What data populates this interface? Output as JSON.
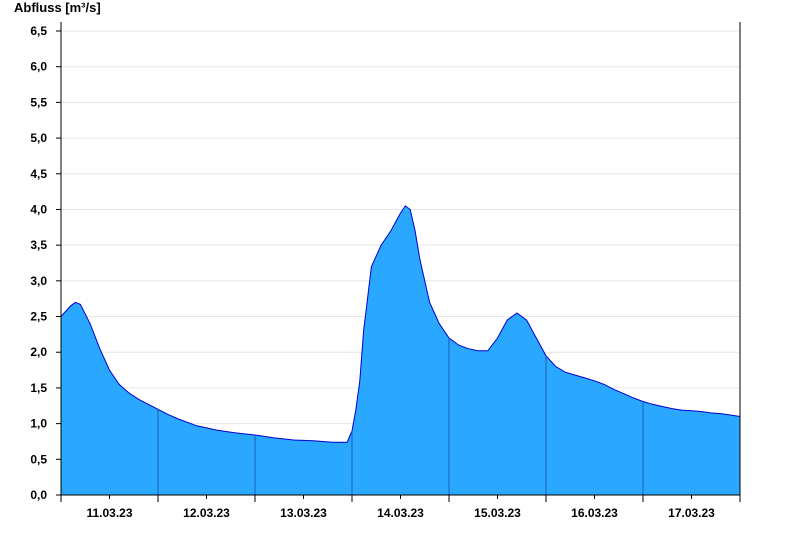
{
  "chart_data": {
    "type": "area",
    "title": "",
    "ylabel": "Abfluss [m³/s]",
    "xlabel": "",
    "ylim": [
      0,
      6.5
    ],
    "yticks": [
      0,
      0.5,
      1,
      1.5,
      2,
      2.5,
      3,
      3.5,
      4,
      4.5,
      5,
      5.5,
      6,
      6.5
    ],
    "ytick_labels": [
      "0,0",
      "0,5",
      "1,0",
      "1,5",
      "2,0",
      "2,5",
      "3,0",
      "3,5",
      "4,0",
      "4,5",
      "5,0",
      "5,5",
      "6,0",
      "6,5"
    ],
    "xlim_days": [
      0,
      7
    ],
    "xtick_labels": [
      "11.03.23",
      "12.03.23",
      "13.03.23",
      "14.03.23",
      "15.03.23",
      "16.03.23",
      "17.03.23"
    ],
    "grid": true,
    "legend": "none",
    "fill_color": "#2aa7ff",
    "line_color": "#0000cc",
    "series": [
      {
        "x_days": [
          0.0,
          0.1,
          0.15,
          0.2,
          0.3,
          0.4,
          0.5,
          0.6,
          0.7,
          0.8,
          0.9,
          1.0,
          1.1,
          1.2,
          1.3,
          1.4,
          1.5,
          1.6,
          1.7,
          1.8,
          2.0,
          2.2,
          2.4,
          2.6,
          2.8,
          2.95,
          3.0,
          3.04,
          3.08,
          3.12,
          3.2,
          3.3,
          3.4,
          3.5,
          3.55,
          3.6,
          3.65,
          3.7,
          3.8,
          3.9,
          4.0,
          4.1,
          4.2,
          4.3,
          4.4,
          4.5,
          4.6,
          4.7,
          4.8,
          4.9,
          5.0,
          5.1,
          5.2,
          5.3,
          5.4,
          5.5,
          5.6,
          5.7,
          5.8,
          5.9,
          6.0,
          6.1,
          6.2,
          6.3,
          6.4,
          6.5,
          6.6,
          6.7,
          6.8,
          6.9,
          7.0
        ],
        "values": [
          2.5,
          2.65,
          2.7,
          2.67,
          2.4,
          2.05,
          1.75,
          1.55,
          1.43,
          1.34,
          1.27,
          1.2,
          1.13,
          1.07,
          1.02,
          0.97,
          0.94,
          0.91,
          0.89,
          0.87,
          0.84,
          0.8,
          0.77,
          0.76,
          0.74,
          0.74,
          0.9,
          1.2,
          1.6,
          2.3,
          3.2,
          3.5,
          3.7,
          3.95,
          4.05,
          4.0,
          3.7,
          3.3,
          2.7,
          2.4,
          2.2,
          2.1,
          2.05,
          2.02,
          2.02,
          2.2,
          2.45,
          2.55,
          2.45,
          2.2,
          1.95,
          1.8,
          1.72,
          1.68,
          1.64,
          1.6,
          1.55,
          1.48,
          1.42,
          1.36,
          1.31,
          1.27,
          1.24,
          1.21,
          1.19,
          1.18,
          1.17,
          1.15,
          1.14,
          1.12,
          1.1
        ]
      }
    ]
  }
}
